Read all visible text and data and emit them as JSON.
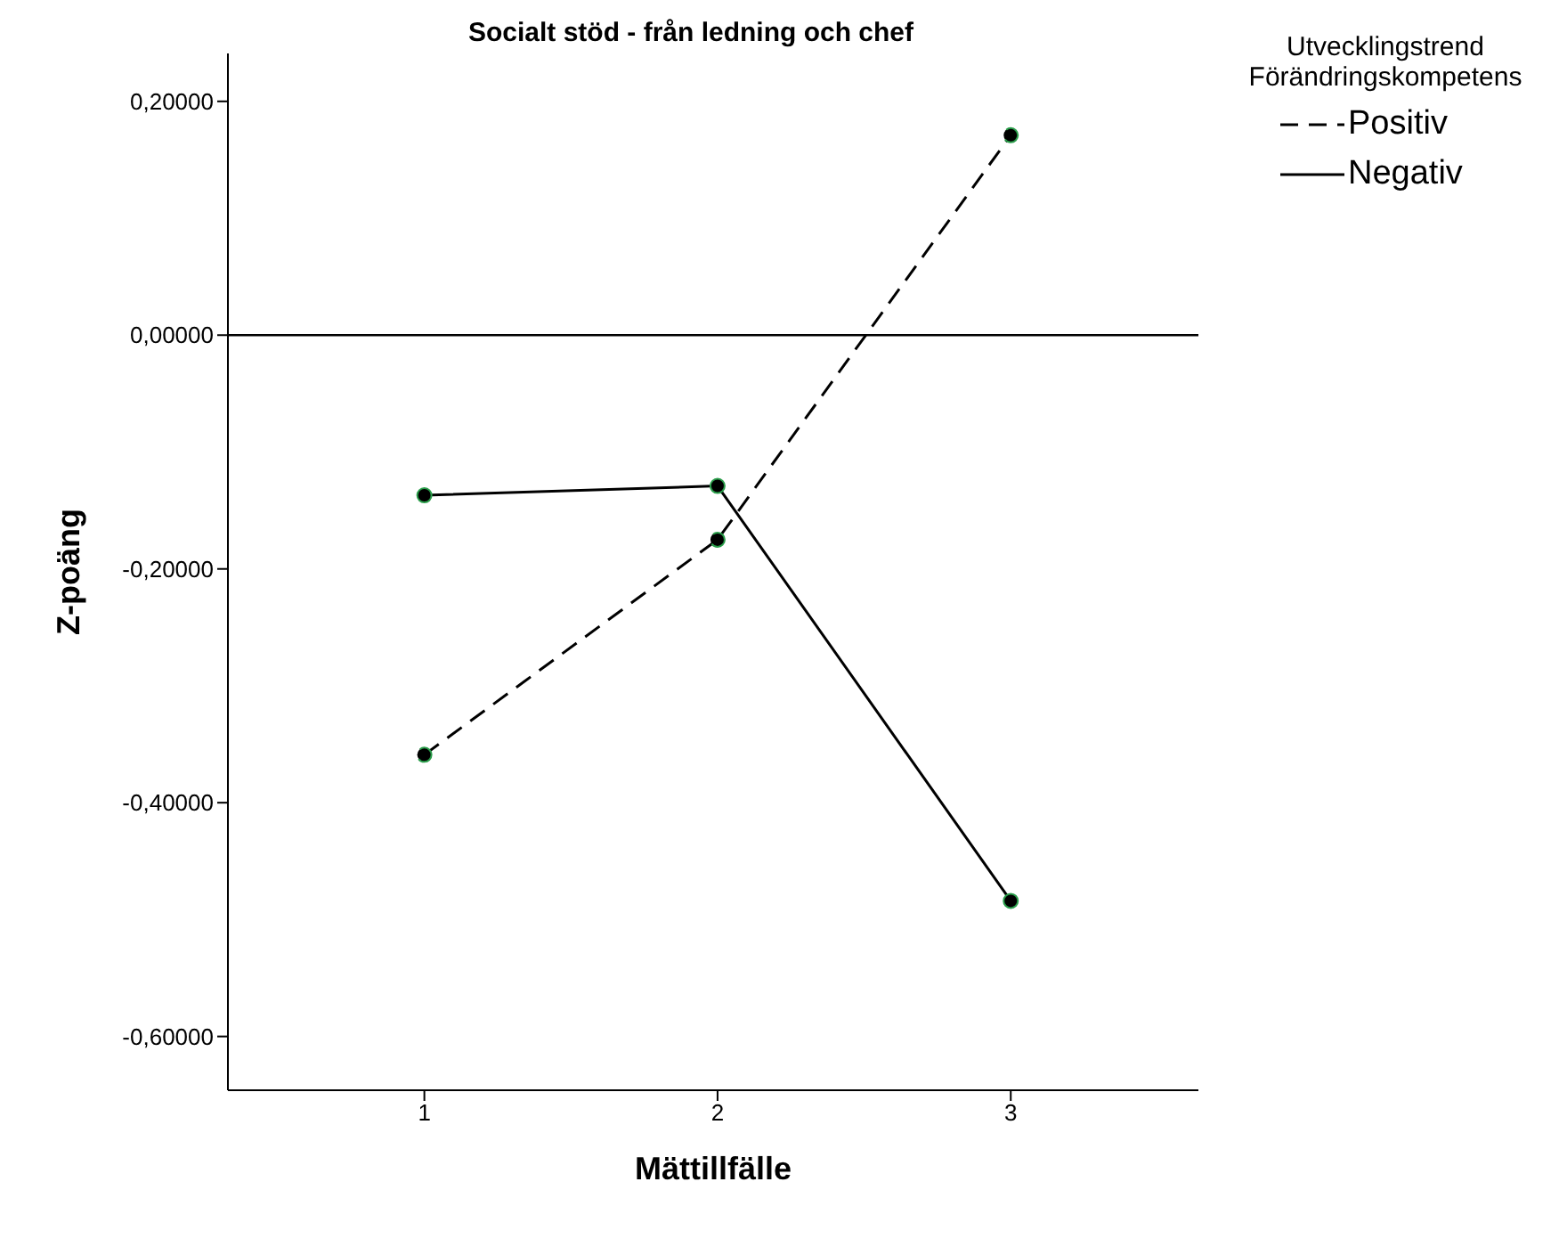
{
  "chart_data": {
    "type": "line",
    "title": "Socialt stöd - från ledning och chef",
    "xlabel": "Mättillfälle",
    "ylabel": "Z-poäng",
    "legend_title": "Utvecklingstrend Förändringskompetens",
    "x": [
      1,
      2,
      3
    ],
    "series": [
      {
        "name": "Positiv",
        "color": "#000000",
        "line_style": "dashed",
        "values": [
          -0.359,
          -0.175,
          0.171
        ]
      },
      {
        "name": "Negativ",
        "color": "#000000",
        "line_style": "solid",
        "values": [
          -0.137,
          -0.129,
          -0.484
        ]
      }
    ],
    "xlim": [
      0.33,
      3.64
    ],
    "xticks": [
      1,
      2,
      3
    ],
    "ylim": [
      -0.646,
      0.241
    ],
    "yticks": [
      {
        "value": -0.6,
        "label": "-0,60000"
      },
      {
        "value": -0.4,
        "label": "-0,40000"
      },
      {
        "value": -0.2,
        "label": "-0,20000"
      },
      {
        "value": 0,
        "label": "0,00000"
      },
      {
        "value": 0.2,
        "label": "0,20000"
      }
    ],
    "ref_lines": [
      {
        "axis": "y",
        "value": 0,
        "color": "#000000"
      }
    ],
    "grid": false,
    "legend": "top right",
    "marker": "circle"
  }
}
